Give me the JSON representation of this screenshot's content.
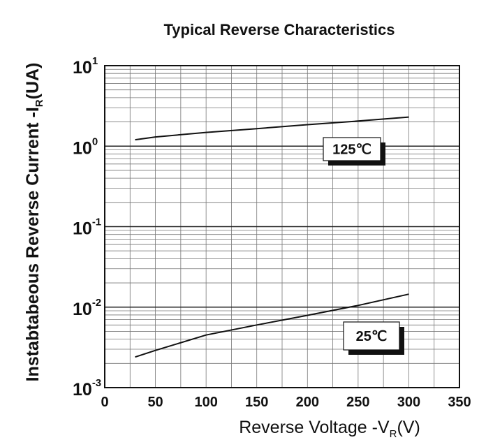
{
  "chart_data": {
    "type": "line",
    "title": "Typical Reverse Characteristics",
    "ylabel": {
      "main": "Instabtabeous Reverse Current -I",
      "sub": "R",
      "unit": "(UA)"
    },
    "xlabel": {
      "main": "Reverse  Voltage -V",
      "sub": "R",
      "unit": "(V)"
    },
    "xlim": [
      0,
      350
    ],
    "ylim": [
      0.001,
      10
    ],
    "y_scale": "log",
    "grid": true,
    "x_ticks": [
      "0",
      "50",
      "100",
      "150",
      "200",
      "250",
      "300",
      "350"
    ],
    "y_ticks": [
      {
        "base": "10",
        "exp": "1"
      },
      {
        "base": "10",
        "exp": "0"
      },
      {
        "base": "10",
        "exp": "-1"
      },
      {
        "base": "10",
        "exp": "-2"
      },
      {
        "base": "10",
        "exp": "-3"
      }
    ],
    "series": [
      {
        "name": "125℃",
        "x": [
          30,
          50,
          100,
          150,
          200,
          250,
          300
        ],
        "y": [
          1.2,
          1.3,
          1.48,
          1.65,
          1.85,
          2.05,
          2.3
        ]
      },
      {
        "name": "25℃",
        "x": [
          30,
          50,
          100,
          150,
          200,
          250,
          300
        ],
        "y": [
          0.0024,
          0.0029,
          0.0045,
          0.006,
          0.0079,
          0.0105,
          0.0145
        ]
      }
    ]
  }
}
